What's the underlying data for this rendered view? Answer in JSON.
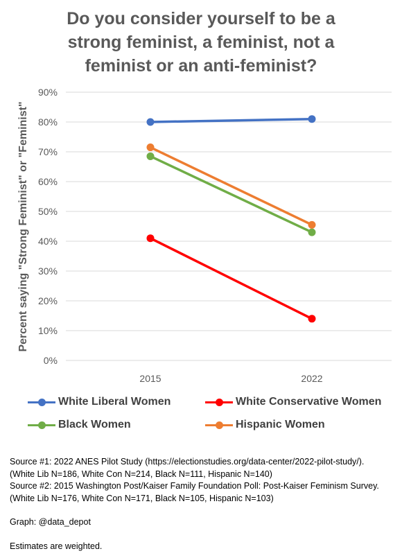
{
  "title_lines": [
    "Do you consider yourself to be a",
    "strong feminist, a feminist, not a",
    "feminist or an anti-feminist?"
  ],
  "chart_data": {
    "type": "line",
    "x": [
      "2015",
      "2022"
    ],
    "ylabel": "Percent saying \"Strong Feminist\" or \"Feminist\"",
    "ylim": [
      0,
      90
    ],
    "yticks": [
      "0%",
      "10%",
      "20%",
      "30%",
      "40%",
      "50%",
      "60%",
      "70%",
      "80%",
      "90%"
    ],
    "grid": true,
    "legend_placement": "bottom",
    "series": [
      {
        "name": "White Liberal Women",
        "color": "#4472C4",
        "values": [
          80,
          81
        ]
      },
      {
        "name": "White Conservative Women",
        "color": "#FF0000",
        "values": [
          41,
          14
        ]
      },
      {
        "name": "Black Women",
        "color": "#70AD47",
        "values": [
          68.5,
          43
        ]
      },
      {
        "name": "Hispanic Women",
        "color": "#ED7D31",
        "values": [
          71.5,
          45.5
        ]
      }
    ]
  },
  "notes": {
    "source1_line1": "Source #1: 2022 ANES Pilot Study (https://electionstudies.org/data-center/2022-pilot-study/).",
    "source1_line2": "(White Lib N=186, White Con N=214, Black N=111, Hispanic N=140)",
    "source2_line1": "Source #2: 2015 Washington Post/Kaiser Family Foundation Poll: Post-Kaiser Feminism Survey.",
    "source2_line2": "(White Lib N=176, White Con N=171, Black N=105, Hispanic N=103)",
    "graph_credit": "Graph: @data_depot",
    "weighting": "Estimates are weighted."
  }
}
